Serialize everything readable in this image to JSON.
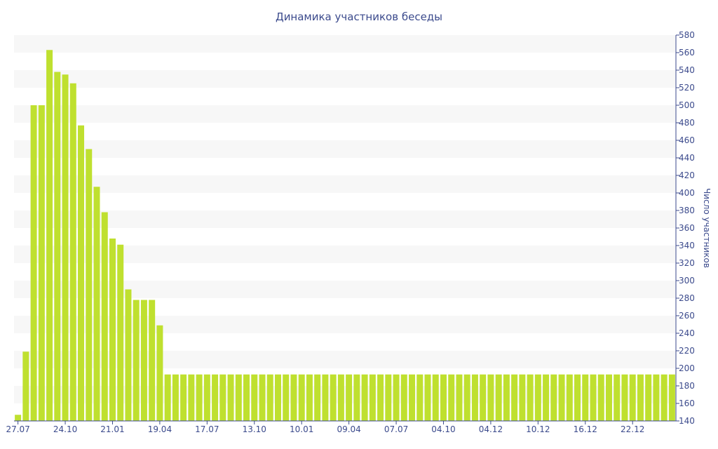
{
  "chart_data": {
    "type": "bar",
    "title": "Динамика участников беседы",
    "xlabel": "",
    "ylabel": "Число участников",
    "ylim": [
      140,
      580
    ],
    "y_ticks": [
      140,
      160,
      180,
      200,
      220,
      240,
      260,
      280,
      300,
      320,
      340,
      360,
      380,
      400,
      420,
      440,
      460,
      480,
      500,
      520,
      540,
      560,
      580
    ],
    "y_axis_side": "right",
    "grid": "horizontal bands",
    "bar_color": "#bfe02f",
    "band_color": "#f7f7f7",
    "text_color": "#3b4a8c",
    "x_tick_labels": [
      {
        "index": 0,
        "label": "27.07"
      },
      {
        "index": 6,
        "label": "24.10"
      },
      {
        "index": 12,
        "label": "21.01"
      },
      {
        "index": 18,
        "label": "19.04"
      },
      {
        "index": 24,
        "label": "17.07"
      },
      {
        "index": 30,
        "label": "13.10"
      },
      {
        "index": 36,
        "label": "10.01"
      },
      {
        "index": 42,
        "label": "09.04"
      },
      {
        "index": 48,
        "label": "07.07"
      },
      {
        "index": 54,
        "label": "04.10"
      },
      {
        "index": 60,
        "label": "04.12"
      },
      {
        "index": 66,
        "label": "10.12"
      },
      {
        "index": 72,
        "label": "16.12"
      },
      {
        "index": 78,
        "label": "22.12"
      }
    ],
    "values": [
      147,
      219,
      500,
      500,
      563,
      538,
      535,
      525,
      477,
      450,
      407,
      378,
      348,
      341,
      290,
      278,
      278,
      278,
      249,
      193,
      193,
      193,
      193,
      193,
      193,
      193,
      193,
      193,
      193,
      193,
      193,
      193,
      193,
      193,
      193,
      193,
      193,
      193,
      193,
      193,
      193,
      193,
      193,
      193,
      193,
      193,
      193,
      193,
      193,
      193,
      193,
      193,
      193,
      193,
      193,
      193,
      193,
      193,
      193,
      193,
      193,
      193,
      193,
      193,
      193,
      193,
      193,
      193,
      193,
      193,
      193,
      193,
      193,
      193,
      193,
      193,
      193,
      193,
      193,
      193,
      193,
      193,
      193,
      193
    ]
  }
}
